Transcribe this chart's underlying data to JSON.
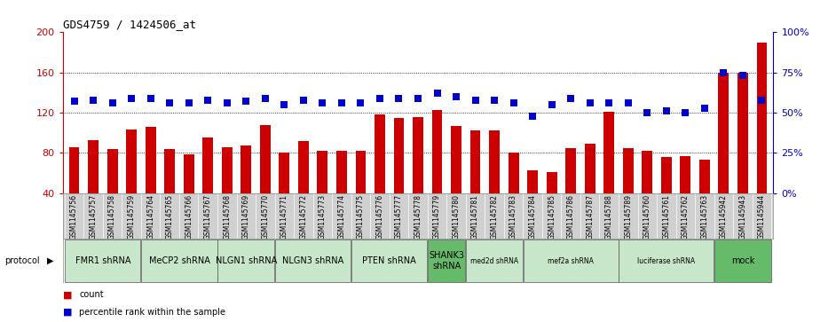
{
  "title": "GDS4759 / 1424506_at",
  "samples": [
    "GSM1145756",
    "GSM1145757",
    "GSM1145758",
    "GSM1145759",
    "GSM1145764",
    "GSM1145765",
    "GSM1145766",
    "GSM1145767",
    "GSM1145768",
    "GSM1145769",
    "GSM1145770",
    "GSM1145771",
    "GSM1145772",
    "GSM1145773",
    "GSM1145774",
    "GSM1145775",
    "GSM1145776",
    "GSM1145777",
    "GSM1145778",
    "GSM1145779",
    "GSM1145780",
    "GSM1145781",
    "GSM1145782",
    "GSM1145783",
    "GSM1145784",
    "GSM1145785",
    "GSM1145786",
    "GSM1145787",
    "GSM1145788",
    "GSM1145789",
    "GSM1145760",
    "GSM1145761",
    "GSM1145762",
    "GSM1145763",
    "GSM1145942",
    "GSM1145943",
    "GSM1145944"
  ],
  "counts": [
    86,
    93,
    84,
    103,
    106,
    84,
    79,
    95,
    86,
    87,
    108,
    80,
    92,
    82,
    82,
    82,
    118,
    115,
    116,
    123,
    107,
    102,
    102,
    80,
    63,
    61,
    85,
    89,
    121,
    85,
    82,
    76,
    77,
    73,
    160,
    160,
    190
  ],
  "percentile_ranks": [
    57,
    58,
    56,
    59,
    59,
    56,
    56,
    58,
    56,
    57,
    59,
    55,
    58,
    56,
    56,
    56,
    59,
    59,
    59,
    62,
    60,
    58,
    58,
    56,
    48,
    55,
    59,
    56,
    56,
    56,
    50,
    51,
    50,
    53,
    75,
    73,
    58
  ],
  "protocols": [
    {
      "label": "FMR1 shRNA",
      "start": 0,
      "end": 4,
      "color": "#c8e6c9"
    },
    {
      "label": "MeCP2 shRNA",
      "start": 4,
      "end": 8,
      "color": "#c8e6c9"
    },
    {
      "label": "NLGN1 shRNA",
      "start": 8,
      "end": 11,
      "color": "#c8e6c9"
    },
    {
      "label": "NLGN3 shRNA",
      "start": 11,
      "end": 15,
      "color": "#c8e6c9"
    },
    {
      "label": "PTEN shRNA",
      "start": 15,
      "end": 19,
      "color": "#c8e6c9"
    },
    {
      "label": "SHANK3\nshRNA",
      "start": 19,
      "end": 21,
      "color": "#66bb6a"
    },
    {
      "label": "med2d shRNA",
      "start": 21,
      "end": 24,
      "color": "#c8e6c9"
    },
    {
      "label": "mef2a shRNA",
      "start": 24,
      "end": 29,
      "color": "#c8e6c9"
    },
    {
      "label": "luciferase shRNA",
      "start": 29,
      "end": 34,
      "color": "#c8e6c9"
    },
    {
      "label": "mock",
      "start": 34,
      "end": 37,
      "color": "#66bb6a"
    }
  ],
  "ylim_left": [
    40,
    200
  ],
  "ylim_right": [
    0,
    100
  ],
  "yticks_left": [
    40,
    80,
    120,
    160,
    200
  ],
  "yticks_right": [
    0,
    25,
    50,
    75,
    100
  ],
  "bar_color": "#cc0000",
  "dot_color": "#0000cc",
  "grid_color": "#000000",
  "bg_color": "#ffffff",
  "tick_label_color_left": "#cc0000",
  "tick_label_color_right": "#0000cc",
  "sample_bg_color": "#d0d0d0"
}
